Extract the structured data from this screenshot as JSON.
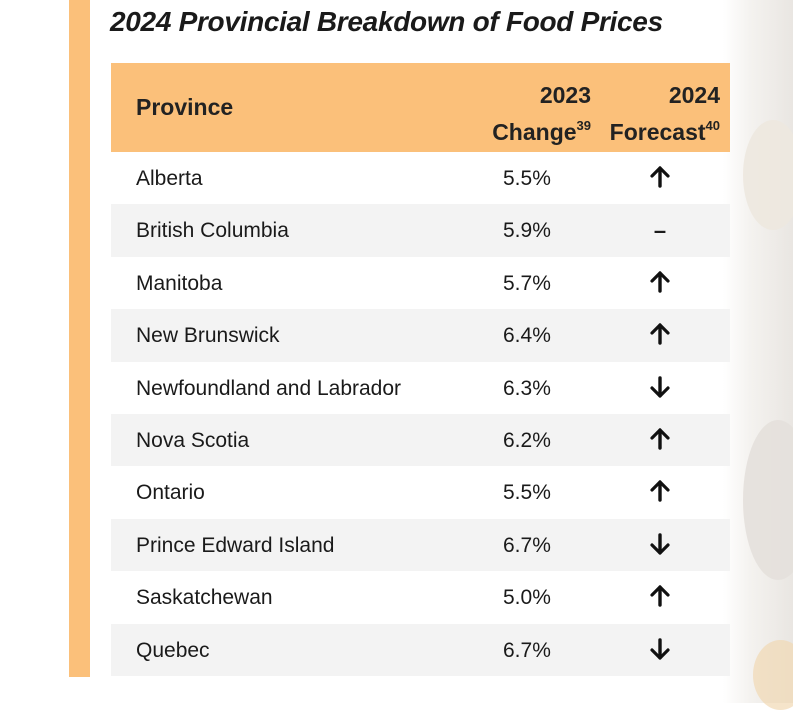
{
  "title": "2024 Provincial Breakdown of Food Prices",
  "table": {
    "headers": {
      "province": "Province",
      "change_line1": "2023",
      "change_line2": "Change",
      "change_sup": "39",
      "forecast_line1": "2024",
      "forecast_line2": "Forecast",
      "forecast_sup": "40"
    },
    "rows": [
      {
        "province": "Alberta",
        "change": "5.5%",
        "forecast": "up"
      },
      {
        "province": "British Columbia",
        "change": "5.9%",
        "forecast": "–"
      },
      {
        "province": "Manitoba",
        "change": "5.7%",
        "forecast": "up"
      },
      {
        "province": "New Brunswick",
        "change": "6.4%",
        "forecast": "up"
      },
      {
        "province": "Newfoundland and Labrador",
        "change": "6.3%",
        "forecast": "down"
      },
      {
        "province": "Nova Scotia",
        "change": "6.2%",
        "forecast": "up"
      },
      {
        "province": "Ontario",
        "change": "5.5%",
        "forecast": "up"
      },
      {
        "province": "Prince Edward Island",
        "change": "6.7%",
        "forecast": "down"
      },
      {
        "province": "Saskatchewan",
        "change": "5.0%",
        "forecast": "up"
      },
      {
        "province": "Quebec",
        "change": "6.7%",
        "forecast": "down"
      }
    ]
  },
  "colors": {
    "accent": "#fbc07a",
    "row_alt": "#f3f3f3",
    "text": "#1a1a1a"
  },
  "icons": {
    "up": "arrow-up-icon",
    "down": "arrow-down-icon",
    "same": "dash-icon"
  }
}
